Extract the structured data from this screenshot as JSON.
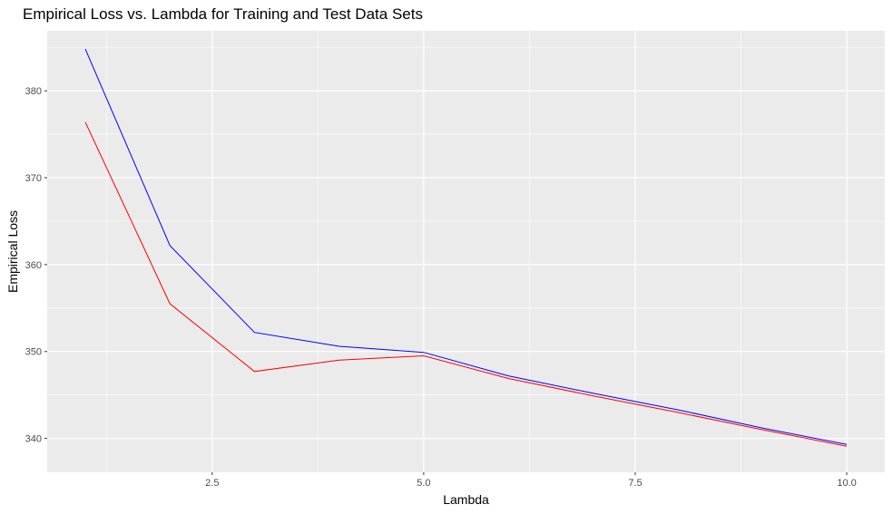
{
  "chart_data": {
    "type": "line",
    "title": "Empirical Loss vs. Lambda for Training and Test Data Sets",
    "xlabel": "Lambda",
    "ylabel": "Empirical Loss",
    "xlim": [
      0.55,
      10.45
    ],
    "ylim": [
      336.1,
      386.9
    ],
    "x_ticks": [
      2.5,
      5.0,
      7.5,
      10.0
    ],
    "x_tick_labels": [
      "2.5",
      "5.0",
      "7.5",
      "10.0"
    ],
    "y_ticks": [
      340,
      350,
      360,
      370,
      380
    ],
    "y_tick_labels": [
      "340",
      "350",
      "360",
      "370",
      "380"
    ],
    "grid": true,
    "legend": "none",
    "x": [
      1,
      2,
      3,
      4,
      5,
      6,
      7,
      8,
      9,
      10
    ],
    "series": [
      {
        "color": "#0000ff",
        "values": [
          384.8,
          362.2,
          352.2,
          350.6,
          349.9,
          347.2,
          345.2,
          343.3,
          341.2,
          339.3
        ]
      },
      {
        "color": "#ff0000",
        "values": [
          376.4,
          355.5,
          347.7,
          349.0,
          349.5,
          346.9,
          344.9,
          343.0,
          341.0,
          339.1
        ]
      }
    ],
    "panel_bg": "#ebebeb",
    "grid_color": "#ffffff"
  }
}
